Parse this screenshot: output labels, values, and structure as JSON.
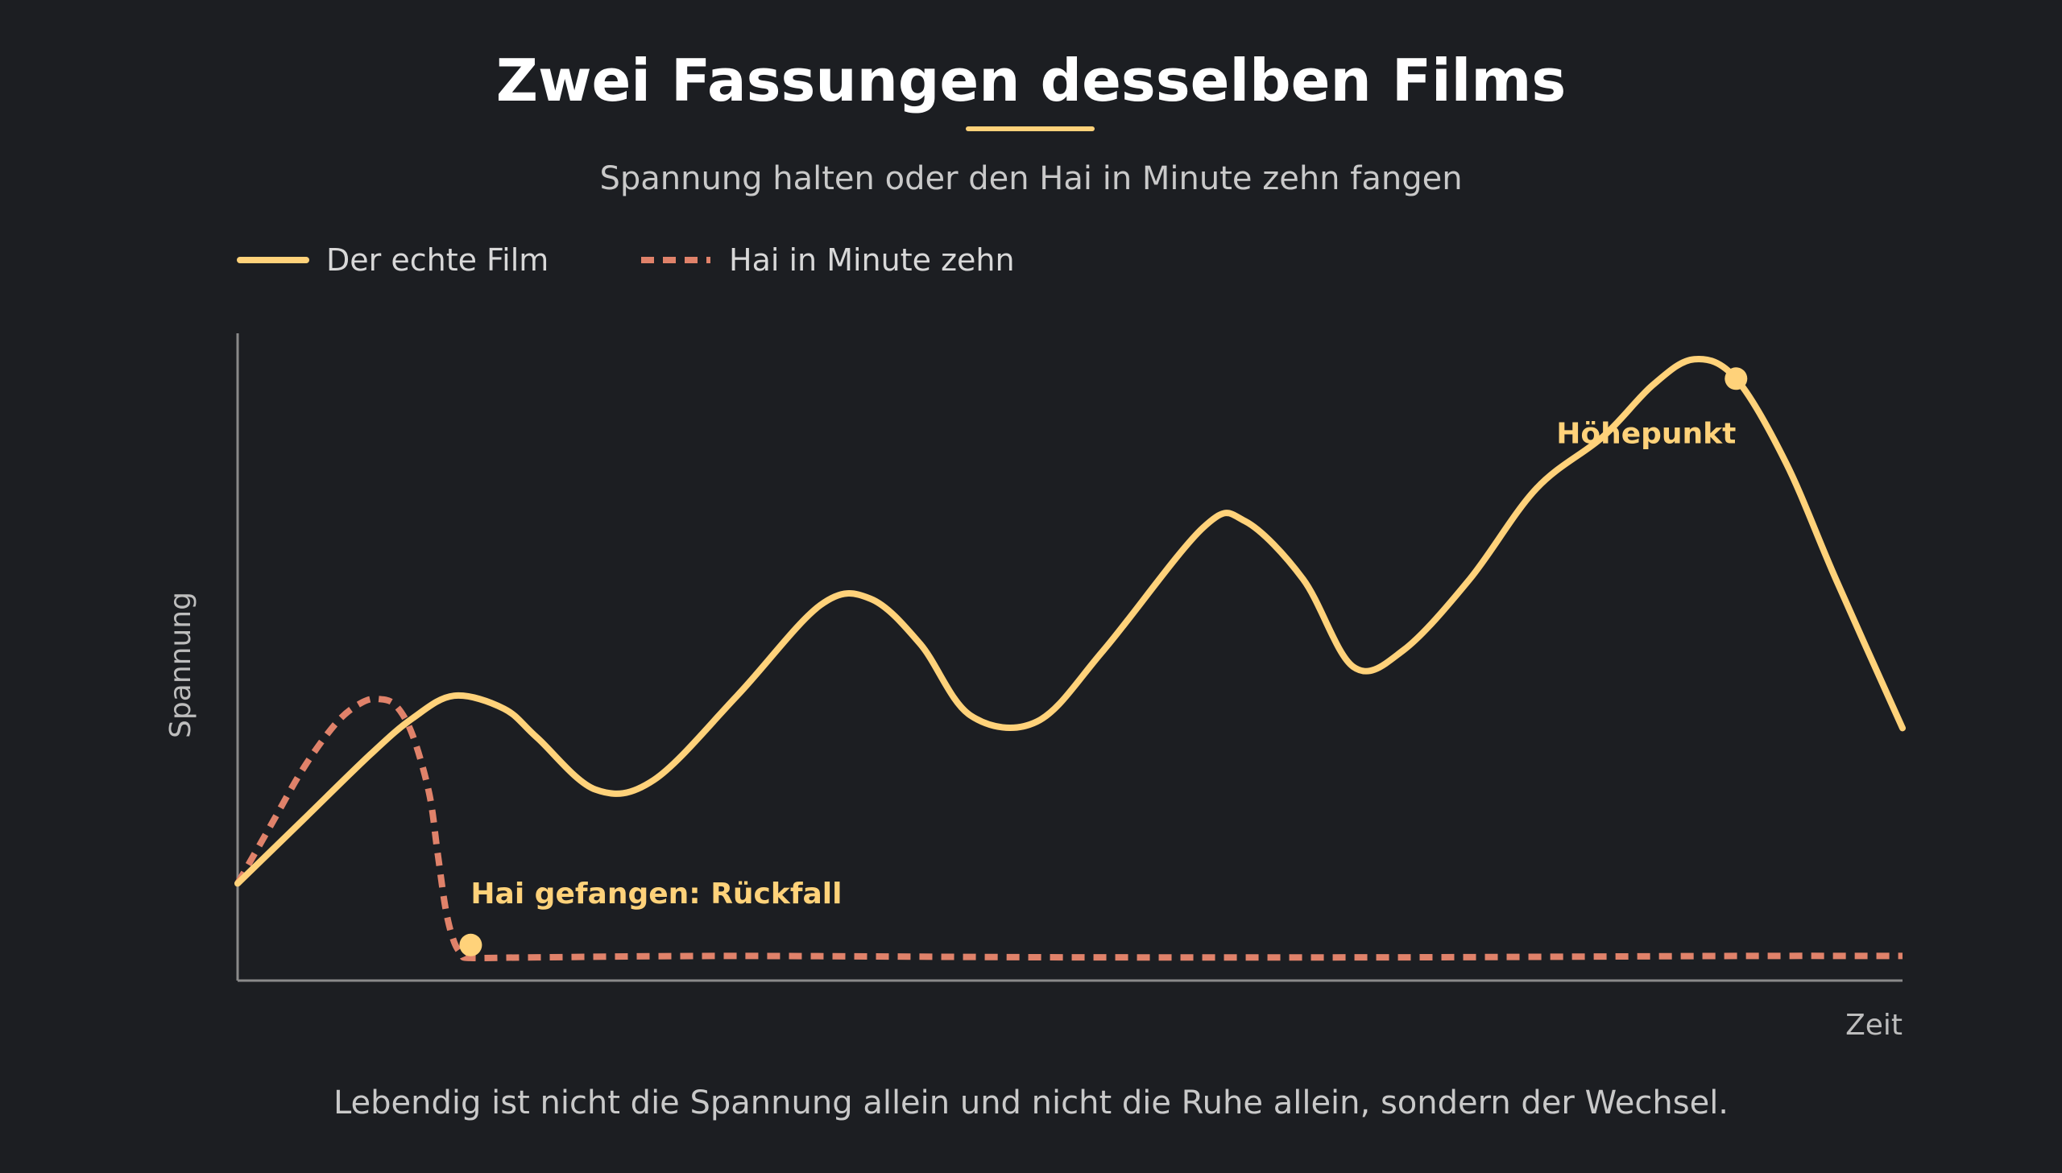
{
  "title": "Zwei Fassungen desselben Films",
  "subtitle": "Spannung halten oder den Hai in Minute zehn fangen",
  "caption": "Lebendig ist nicht die Spannung allein und nicht die Ruhe allein, sondern der Wechsel.",
  "colors": {
    "background": "#1c1e22",
    "accent": "#ffd27a",
    "series_real": "#ffd27a",
    "series_shark": "#e0826a",
    "axis": "#8a8a8a"
  },
  "chart_data": {
    "type": "line",
    "title": "Zwei Fassungen desselben Films",
    "subtitle": "Spannung halten oder den Hai in Minute zehn fangen",
    "xlabel": "Zeit",
    "ylabel": "Spannung",
    "xlim": [
      0,
      100
    ],
    "ylim": [
      0,
      100
    ],
    "grid": false,
    "legend_position": "top-left",
    "series": [
      {
        "name": "Der echte Film",
        "style": "solid",
        "color": "#ffd27a",
        "x": [
          0,
          4,
          8,
          10.5,
          13,
          16,
          18,
          21.5,
          25,
          30,
          35,
          38,
          41,
          44,
          48,
          52,
          58,
          60.5,
          64,
          67,
          70,
          74,
          78,
          82,
          85,
          87.5,
          90,
          93,
          96,
          100
        ],
        "y": [
          15,
          25,
          35,
          40.5,
          44,
          42,
          37.5,
          29.5,
          31,
          44,
          58,
          59,
          52,
          41,
          40,
          51,
          70,
          71,
          62,
          48.5,
          51,
          62,
          76,
          84,
          92,
          96,
          93,
          80,
          62,
          39
        ]
      },
      {
        "name": "Hai in Minute zehn",
        "style": "dashed",
        "color": "#e0826a",
        "x": [
          0,
          2,
          4,
          6,
          7.5,
          8.5,
          9.5,
          10.5,
          11.5,
          12,
          12.5,
          13,
          13.5,
          14,
          18,
          30,
          50,
          70,
          90,
          100
        ],
        "y": [
          15,
          24,
          33,
          40,
          43,
          43.5,
          42.5,
          38,
          29,
          20,
          11,
          6,
          4,
          3.5,
          3.6,
          3.8,
          3.6,
          3.6,
          3.8,
          3.8
        ]
      }
    ],
    "annotations": [
      {
        "text": "Hai gefangen: Rückfall",
        "series": "Hai in Minute zehn",
        "x": 14,
        "y": 5.5
      },
      {
        "text": "Höhepunkt",
        "series": "Der echte Film",
        "x": 90,
        "y": 93
      }
    ]
  }
}
